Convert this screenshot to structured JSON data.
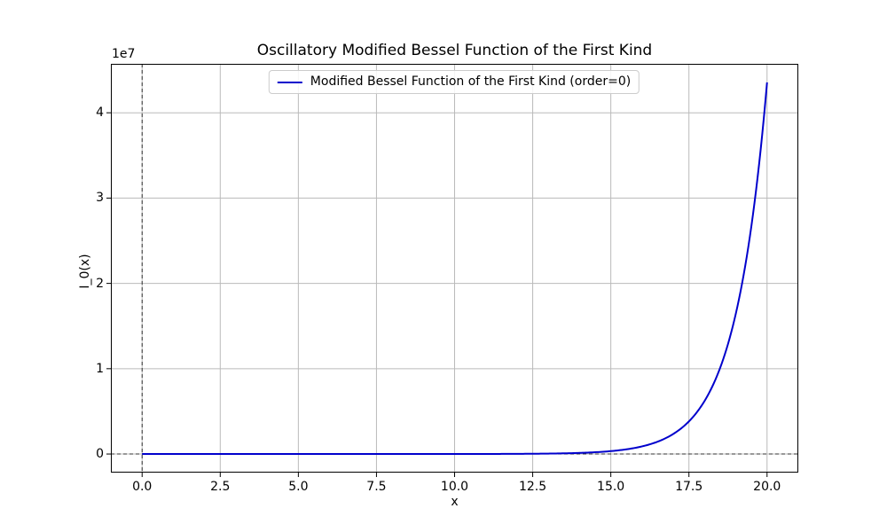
{
  "chart_data": {
    "type": "line",
    "title": "Oscillatory Modified Bessel Function of the First Kind",
    "xlabel": "x",
    "ylabel": "I_0(x)",
    "y_offset_label": "1e7",
    "grid": true,
    "grid_color": "#bababa",
    "spine_color": "#000000",
    "reference_lines": {
      "vertical_x": 0,
      "horizontal_y": 0,
      "style": "dashed",
      "color": "#333333"
    },
    "legend": {
      "position": "upper center",
      "entries": [
        {
          "label": "Modified Bessel Function of the First Kind (order=0)",
          "color": "#0000cc"
        }
      ]
    },
    "xlim": [
      -1,
      21
    ],
    "ylim": [
      -2178000,
      45736200
    ],
    "xticks": {
      "values": [
        0,
        2.5,
        5,
        7.5,
        10,
        12.5,
        15,
        17.5,
        20
      ],
      "labels": [
        "0.0",
        "2.5",
        "5.0",
        "7.5",
        "10.0",
        "12.5",
        "15.0",
        "17.5",
        "20.0"
      ]
    },
    "yticks": {
      "values": [
        0,
        10000000,
        20000000,
        30000000,
        40000000
      ],
      "labels": [
        "0",
        "1",
        "2",
        "3",
        "4"
      ]
    },
    "series": [
      {
        "name": "Modified Bessel Function of the First Kind (order=0)",
        "color": "#0000cc",
        "line_width": 2,
        "x": [
          0,
          1,
          2,
          3,
          4,
          5,
          6,
          7,
          8,
          9,
          10,
          11,
          12,
          13,
          14,
          14.5,
          15,
          15.5,
          16,
          16.5,
          17,
          17.5,
          18,
          18.5,
          19,
          19.5,
          20
        ],
        "y": [
          1,
          1.266,
          2.2796,
          4.8808,
          11.302,
          27.24,
          67.234,
          168.59,
          427.56,
          1093.6,
          2815.7,
          7288.5,
          18949,
          49445,
          129419,
          209600,
          339649,
          550600,
          893446,
          1449700,
          2354970,
          3826000,
          6218412,
          10110700,
          16446200,
          26751300,
          43558283
        ]
      }
    ]
  }
}
